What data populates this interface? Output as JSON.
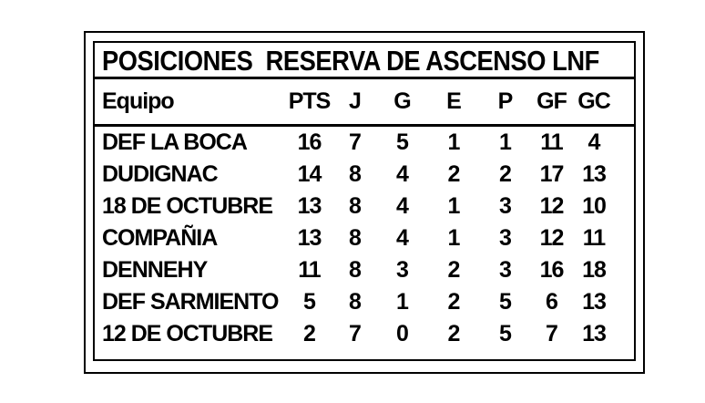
{
  "colors": {
    "background": "#ffffff",
    "text": "#000000",
    "border": "#000000"
  },
  "chart_data": {
    "type": "table",
    "title": "POSICIONES  RESERVA DE ASCENSO LNF",
    "columns": [
      "Equipo",
      "PTS",
      "J",
      "G",
      "E",
      "P",
      "GF",
      "GC"
    ],
    "rows": [
      [
        "DEF LA BOCA",
        16,
        7,
        5,
        1,
        1,
        11,
        4
      ],
      [
        "DUDIGNAC",
        14,
        8,
        4,
        2,
        2,
        17,
        13
      ],
      [
        "18 DE OCTUBRE",
        13,
        8,
        4,
        1,
        3,
        12,
        10
      ],
      [
        "COMPAÑIA",
        13,
        8,
        4,
        1,
        3,
        12,
        11
      ],
      [
        "DENNEHY",
        11,
        8,
        3,
        2,
        3,
        16,
        18
      ],
      [
        "DEF SARMIENTO",
        5,
        8,
        1,
        2,
        5,
        6,
        13
      ],
      [
        "12 DE OCTUBRE",
        2,
        7,
        0,
        2,
        5,
        7,
        13
      ]
    ]
  }
}
